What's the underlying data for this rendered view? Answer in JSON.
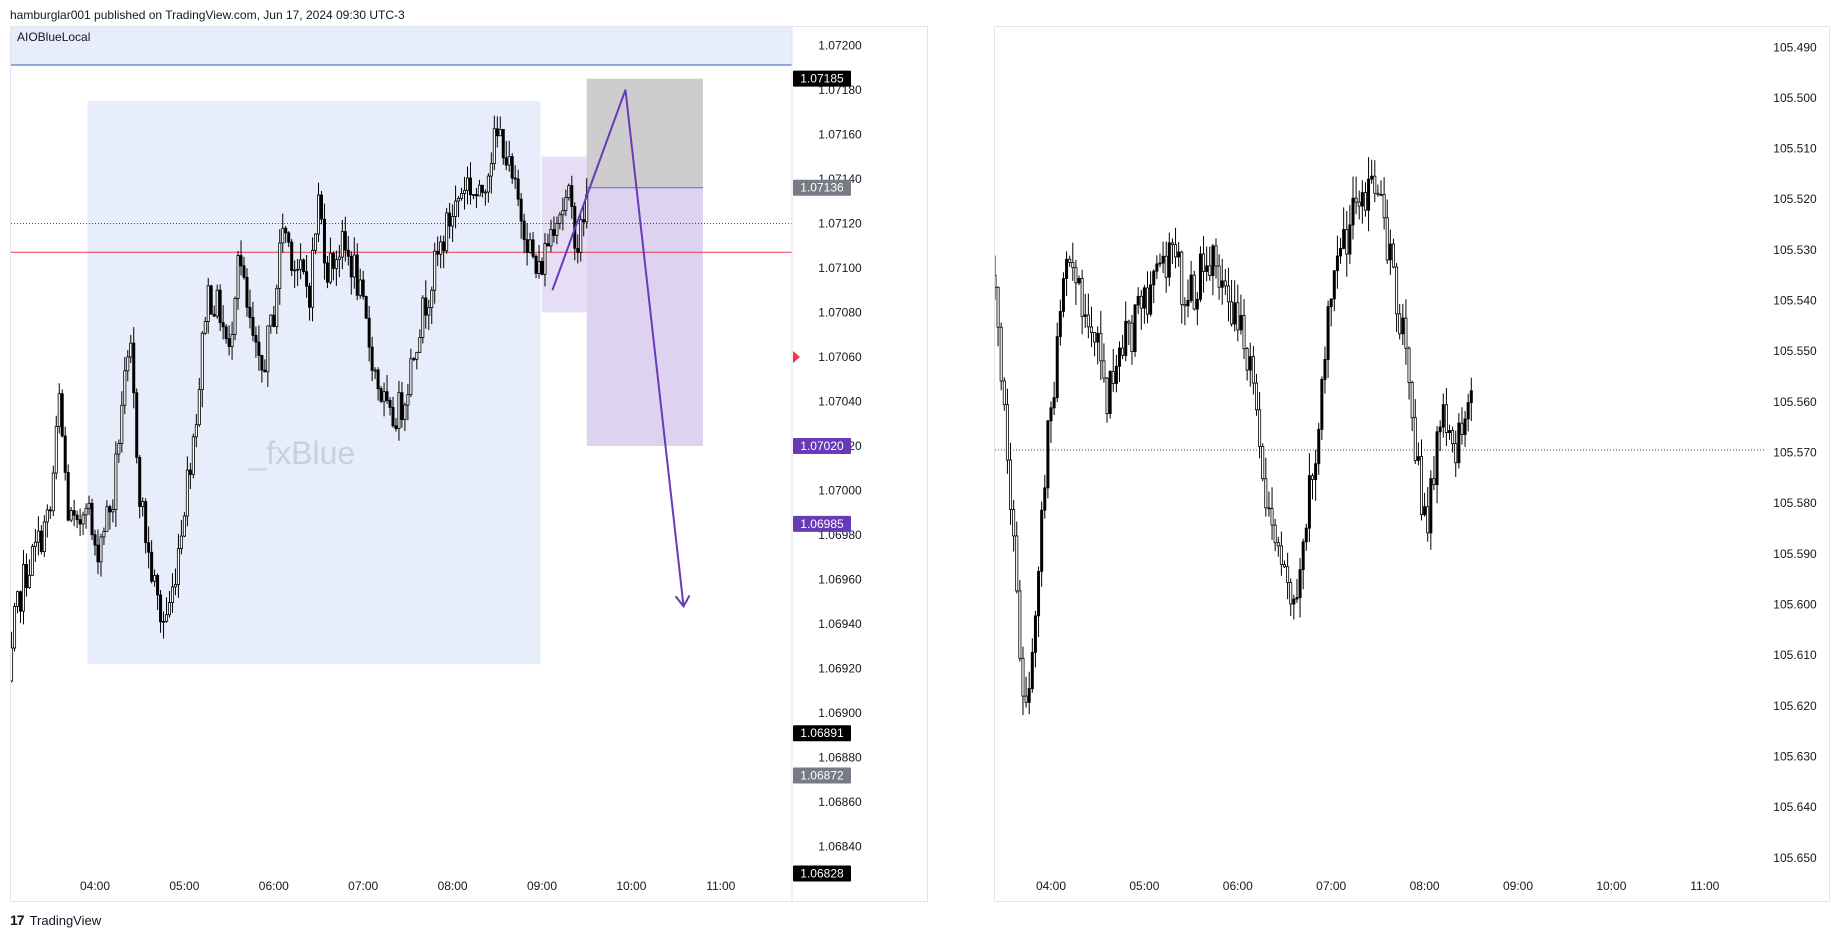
{
  "header": {
    "publish_line": "hamburglar001 published on TradingView.com, Jun 17, 2024 09:30 UTC-3"
  },
  "footer": {
    "brand": "TradingView",
    "logo_glyph": "17"
  },
  "left_panel": {
    "indicator_label": "AIOBlueLocal",
    "watermark": "_fxBlue"
  },
  "colors": {
    "zone_blue": "#e8edfc",
    "zone_purple": "#ddd3f1",
    "zone_gray": "#cdcdcd",
    "arrow": "#673ab7",
    "red_line": "#f23645",
    "candle": "#000000",
    "tag_purple": "#673ab7",
    "tag_gray": "#787b86",
    "tag_black": "#000000"
  },
  "chart_data": [
    {
      "type": "candlestick",
      "title": "",
      "symbol": "",
      "y_axis_ticks": [
        "1.07200",
        "1.07180",
        "1.07160",
        "1.07140",
        "1.07120",
        "1.07100",
        "1.07080",
        "1.07060",
        "1.07040",
        "1.07020",
        "1.07000",
        "1.06980",
        "1.06960",
        "1.06940",
        "1.06920",
        "1.06900",
        "1.06880",
        "1.06860",
        "1.06840"
      ],
      "x_axis_ticks": [
        "04:00",
        "05:00",
        "06:00",
        "07:00",
        "08:00",
        "09:00",
        "10:00",
        "11:00"
      ],
      "ylim": [
        1.0683,
        1.0721
      ],
      "price_tags": [
        {
          "value": "1.07185",
          "style": "black"
        },
        {
          "value": "1.07136",
          "style": "gray"
        },
        {
          "value": "1.07020",
          "style": "purple"
        },
        {
          "value": "1.06985",
          "style": "purple"
        },
        {
          "value": "1.06891",
          "style": "black"
        },
        {
          "value": "1.06872",
          "style": "gray"
        },
        {
          "value": "1.06828",
          "style": "black"
        }
      ],
      "horizontal_lines": [
        {
          "value": 1.0712,
          "style": "dotted"
        },
        {
          "value": 1.07107,
          "style": "red"
        }
      ],
      "zones": [
        {
          "name": "blue-range",
          "t0": "03:55",
          "t1": "08:59",
          "y0": 1.06922,
          "y1": 1.07175,
          "color": "zone_blue"
        },
        {
          "name": "small-range",
          "t0": "09:00",
          "t1": "09:30",
          "y0": 1.0708,
          "y1": 1.0715,
          "color": "zone_purple"
        },
        {
          "name": "stop-zone",
          "t0": "09:30",
          "t1": "10:48",
          "y0": 1.07136,
          "y1": 1.07185,
          "color": "zone_gray"
        },
        {
          "name": "target-zone",
          "t0": "09:30",
          "t1": "10:48",
          "y0": 1.0702,
          "y1": 1.07136,
          "color": "zone_purple"
        }
      ],
      "projection_path": [
        {
          "t": "09:07",
          "y": 1.0709
        },
        {
          "t": "09:56",
          "y": 1.0718
        },
        {
          "t": "10:35",
          "y": 1.06948
        }
      ],
      "price_path": [
        [
          3.0,
          1.0689
        ],
        [
          3.1,
          1.0694
        ],
        [
          3.2,
          1.0696
        ],
        [
          3.35,
          1.06975
        ],
        [
          3.5,
          1.0699
        ],
        [
          3.6,
          1.0704
        ],
        [
          3.7,
          1.0699
        ],
        [
          3.8,
          1.0698
        ],
        [
          3.9,
          1.07
        ],
        [
          4.0,
          1.0697
        ],
        [
          4.1,
          1.06985
        ],
        [
          4.2,
          1.06995
        ],
        [
          4.3,
          1.0704
        ],
        [
          4.4,
          1.0706
        ],
        [
          4.5,
          1.07
        ],
        [
          4.6,
          1.0697
        ],
        [
          4.75,
          1.0694
        ],
        [
          4.85,
          1.0695
        ],
        [
          5.0,
          1.06995
        ],
        [
          5.15,
          1.0704
        ],
        [
          5.25,
          1.0709
        ],
        [
          5.4,
          1.0708
        ],
        [
          5.5,
          1.0706
        ],
        [
          5.6,
          1.0711
        ],
        [
          5.7,
          1.0708
        ],
        [
          5.85,
          1.0705
        ],
        [
          6.0,
          1.0708
        ],
        [
          6.1,
          1.0712
        ],
        [
          6.25,
          1.071
        ],
        [
          6.4,
          1.0709
        ],
        [
          6.5,
          1.0713
        ],
        [
          6.6,
          1.071
        ],
        [
          6.75,
          1.0711
        ],
        [
          6.9,
          1.071
        ],
        [
          7.0,
          1.0708
        ],
        [
          7.15,
          1.0705
        ],
        [
          7.3,
          1.0703
        ],
        [
          7.45,
          1.0704
        ],
        [
          7.6,
          1.0707
        ],
        [
          7.8,
          1.071
        ],
        [
          7.95,
          1.0712
        ],
        [
          8.05,
          1.0713
        ],
        [
          8.15,
          1.0714
        ],
        [
          8.3,
          1.0713
        ],
        [
          8.45,
          1.07155
        ],
        [
          8.55,
          1.0716
        ],
        [
          8.65,
          1.0714
        ],
        [
          8.8,
          1.0712
        ],
        [
          8.95,
          1.07095
        ],
        [
          9.05,
          1.0711
        ],
        [
          9.15,
          1.07125
        ],
        [
          9.3,
          1.0713
        ],
        [
          9.4,
          1.0711
        ],
        [
          9.5,
          1.0713
        ]
      ]
    },
    {
      "type": "candlestick",
      "title": "",
      "symbol": "",
      "inverted_scale": true,
      "y_axis_ticks": [
        "105.490",
        "105.500",
        "105.510",
        "105.520",
        "105.530",
        "105.540",
        "105.550",
        "105.560",
        "105.570",
        "105.580",
        "105.590",
        "105.600",
        "105.610",
        "105.620",
        "105.630",
        "105.640",
        "105.650"
      ],
      "x_axis_ticks": [
        "04:00",
        "05:00",
        "06:00",
        "07:00",
        "08:00",
        "09:00",
        "10:00",
        "11:00"
      ],
      "ylim": [
        105.486,
        105.653
      ],
      "horizontal_lines": [
        {
          "value": 105.5695,
          "style": "dotted"
        }
      ],
      "price_path": [
        [
          3.4,
          105.535
        ],
        [
          3.5,
          105.56
        ],
        [
          3.6,
          105.59
        ],
        [
          3.7,
          105.62
        ],
        [
          3.8,
          105.61
        ],
        [
          3.9,
          105.58
        ],
        [
          4.0,
          105.56
        ],
        [
          4.1,
          105.545
        ],
        [
          4.2,
          105.53
        ],
        [
          4.3,
          105.54
        ],
        [
          4.45,
          105.545
        ],
        [
          4.6,
          105.56
        ],
        [
          4.75,
          105.55
        ],
        [
          4.9,
          105.545
        ],
        [
          5.0,
          105.54
        ],
        [
          5.15,
          105.535
        ],
        [
          5.3,
          105.53
        ],
        [
          5.45,
          105.54
        ],
        [
          5.6,
          105.535
        ],
        [
          5.75,
          105.53
        ],
        [
          5.9,
          105.54
        ],
        [
          6.05,
          105.545
        ],
        [
          6.2,
          105.56
        ],
        [
          6.3,
          105.58
        ],
        [
          6.45,
          105.59
        ],
        [
          6.55,
          105.6
        ],
        [
          6.7,
          105.59
        ],
        [
          6.85,
          105.565
        ],
        [
          7.0,
          105.54
        ],
        [
          7.1,
          105.53
        ],
        [
          7.2,
          105.525
        ],
        [
          7.35,
          105.52
        ],
        [
          7.45,
          105.515
        ],
        [
          7.6,
          105.53
        ],
        [
          7.75,
          105.545
        ],
        [
          7.85,
          105.56
        ],
        [
          8.0,
          105.585
        ],
        [
          8.1,
          105.575
        ],
        [
          8.2,
          105.56
        ],
        [
          8.3,
          105.57
        ],
        [
          8.4,
          105.565
        ],
        [
          8.5,
          105.555
        ]
      ]
    }
  ]
}
